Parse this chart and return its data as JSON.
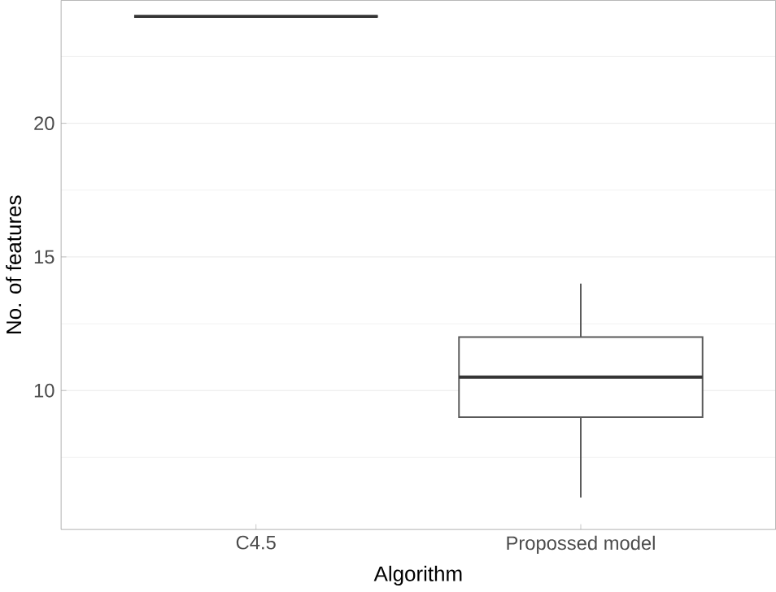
{
  "chart_data": {
    "type": "box",
    "xlabel": "Algorithm",
    "ylabel": "No. of features",
    "categories": [
      "C4.5",
      "Propossed model"
    ],
    "boxes": [
      {
        "low": 24,
        "q1": 24,
        "median": 24,
        "q3": 24,
        "high": 24
      },
      {
        "low": 6,
        "q1": 9,
        "median": 10.5,
        "q3": 12,
        "high": 14
      }
    ],
    "color": "#595959",
    "ylim": [
      4.8,
      24.6
    ],
    "yticks": [
      {
        "value": 7.5,
        "label": null
      },
      10,
      {
        "value": 12.5,
        "label": null
      },
      15,
      {
        "value": 17.5,
        "label": null
      },
      20,
      {
        "value": 22.5,
        "label": null
      }
    ],
    "grid": "y"
  }
}
